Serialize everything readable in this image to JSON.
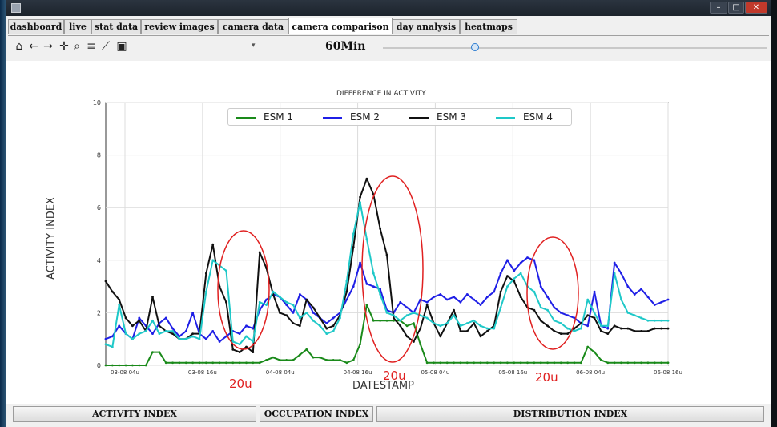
{
  "window": {
    "title": "",
    "minimize": "–",
    "maximize": "□",
    "close": "✕"
  },
  "tabs": [
    {
      "label": "dashboard"
    },
    {
      "label": "live"
    },
    {
      "label": "stat data"
    },
    {
      "label": "review images"
    },
    {
      "label": "camera data"
    },
    {
      "label": "camera comparison",
      "active": true
    },
    {
      "label": "day analysis"
    },
    {
      "label": "heatmaps"
    }
  ],
  "toolbar": {
    "icons": [
      "home-icon",
      "back-icon",
      "forward-icon",
      "pan-icon",
      "zoom-icon",
      "configure-subplots-icon",
      "edit-axis-icon",
      "save-icon"
    ],
    "interval_label": "60Min",
    "slider_value": 0.24
  },
  "annotations": [
    {
      "text": "20u"
    },
    {
      "text": "20u"
    },
    {
      "text": "20u"
    }
  ],
  "bottom_buttons": [
    {
      "label": "ACTIVITY INDEX"
    },
    {
      "label": "OCCUPATION INDEX"
    },
    {
      "label": "DISTRIBUTION INDEX"
    }
  ],
  "colors": {
    "esm1": "#1a8a1a",
    "esm2": "#1f1fe6",
    "esm3": "#111111",
    "esm4": "#1ec8c8",
    "annotation": "#e02020"
  },
  "chart_data": {
    "type": "line",
    "title": "DIFFERENCE IN ACTIVITY",
    "xlabel": "DATESTAMP",
    "ylabel": "ACTIVITY INDEX",
    "ylim": [
      0,
      10
    ],
    "yticks": [
      "0",
      "2",
      "4",
      "6",
      "8",
      "10"
    ],
    "xtick_labels": [
      "03-08 04u",
      "03-08 16u",
      "04-08 04u",
      "04-08 16u",
      "05-08 04u",
      "05-08 16u",
      "06-08 04u",
      "06-08 16u"
    ],
    "grid": true,
    "legend_position": "top-center",
    "x": [
      0,
      1,
      2,
      3,
      4,
      5,
      6,
      7,
      8,
      9,
      10,
      11,
      12,
      13,
      14,
      15,
      16,
      17,
      18,
      19,
      20,
      21,
      22,
      23,
      24,
      25,
      26,
      27,
      28,
      29,
      30,
      31,
      32,
      33,
      34,
      35,
      36,
      37,
      38,
      39,
      40,
      41,
      42,
      43,
      44,
      45,
      46,
      47,
      48,
      49,
      50,
      51,
      52,
      53,
      54,
      55,
      56,
      57,
      58,
      59,
      60,
      61,
      62,
      63,
      64,
      65,
      66,
      67,
      68,
      69,
      70,
      71,
      72,
      73,
      74,
      75,
      76,
      77,
      78,
      79,
      80,
      81,
      82,
      83,
      84
    ],
    "x_unit_note": "",
    "series": [
      {
        "name": "ESM 1",
        "values": [
          0,
          0,
          0,
          0,
          0,
          0,
          0,
          0.5,
          0.5,
          0.1,
          0.1,
          0.1,
          0.1,
          0.1,
          0.1,
          0.1,
          0.1,
          0.1,
          0.1,
          0.1,
          0.1,
          0.1,
          0.1,
          0.1,
          0.2,
          0.3,
          0.2,
          0.2,
          0.2,
          0.4,
          0.6,
          0.3,
          0.3,
          0.2,
          0.2,
          0.2,
          0.1,
          0.2,
          0.8,
          2.3,
          1.7,
          1.7,
          1.7,
          1.7,
          1.7,
          1.5,
          1.6,
          0.8,
          0.1,
          0.1,
          0.1,
          0.1,
          0.1,
          0.1,
          0.1,
          0.1,
          0.1,
          0.1,
          0.1,
          0.1,
          0.1,
          0.1,
          0.1,
          0.1,
          0.1,
          0.1,
          0.1,
          0.1,
          0.1,
          0.1,
          0.1,
          0.1,
          0.7,
          0.5,
          0.2,
          0.1,
          0.1,
          0.1,
          0.1,
          0.1,
          0.1,
          0.1,
          0.1,
          0.1,
          0.1
        ]
      },
      {
        "name": "ESM 2",
        "values": [
          1.0,
          1.1,
          1.5,
          1.2,
          1.0,
          1.8,
          1.5,
          1.2,
          1.6,
          1.8,
          1.4,
          1.1,
          1.3,
          2.0,
          1.2,
          1.0,
          1.3,
          0.9,
          1.1,
          1.3,
          1.2,
          1.5,
          1.4,
          2.1,
          2.5,
          2.7,
          2.6,
          2.3,
          2.0,
          2.7,
          2.5,
          2.0,
          1.8,
          1.6,
          1.8,
          2.0,
          2.5,
          3.0,
          3.9,
          3.1,
          3.0,
          2.9,
          2.1,
          2.0,
          2.4,
          2.2,
          2.0,
          2.5,
          2.4,
          2.6,
          2.7,
          2.5,
          2.6,
          2.4,
          2.7,
          2.5,
          2.3,
          2.6,
          2.8,
          3.5,
          4.0,
          3.6,
          3.9,
          4.1,
          4.0,
          3.0,
          2.6,
          2.2,
          2.0,
          1.9,
          1.8,
          1.6,
          1.5,
          2.8,
          1.5,
          1.4,
          3.9,
          3.5,
          3.0,
          2.7,
          2.9,
          2.6,
          2.3,
          2.4,
          2.5
        ]
      },
      {
        "name": "ESM 3",
        "values": [
          3.2,
          2.8,
          2.5,
          1.8,
          1.5,
          1.7,
          1.3,
          2.6,
          1.5,
          1.3,
          1.2,
          1.0,
          1.0,
          1.2,
          1.2,
          3.5,
          4.6,
          3.0,
          2.4,
          0.6,
          0.5,
          0.7,
          0.5,
          4.3,
          3.7,
          2.7,
          2.0,
          1.9,
          1.6,
          1.5,
          2.5,
          2.2,
          1.8,
          1.4,
          1.5,
          1.9,
          2.8,
          4.5,
          6.4,
          7.1,
          6.5,
          5.2,
          4.2,
          1.8,
          1.5,
          1.1,
          0.9,
          1.4,
          2.3,
          1.6,
          1.1,
          1.6,
          2.1,
          1.3,
          1.3,
          1.6,
          1.1,
          1.3,
          1.5,
          2.8,
          3.4,
          3.2,
          2.6,
          2.2,
          2.1,
          1.7,
          1.5,
          1.3,
          1.2,
          1.2,
          1.4,
          1.6,
          1.9,
          1.8,
          1.3,
          1.2,
          1.5,
          1.4,
          1.4,
          1.3,
          1.3,
          1.3,
          1.4,
          1.4,
          1.4
        ]
      },
      {
        "name": "ESM 4",
        "values": [
          0.8,
          0.7,
          2.3,
          1.2,
          1.0,
          1.2,
          1.3,
          1.7,
          1.2,
          1.3,
          1.3,
          1.0,
          1.0,
          1.1,
          1.0,
          2.8,
          4.0,
          3.8,
          3.6,
          0.9,
          0.8,
          1.1,
          0.9,
          2.4,
          2.3,
          2.8,
          2.6,
          2.4,
          2.3,
          1.8,
          2.0,
          1.7,
          1.5,
          1.2,
          1.3,
          1.8,
          3.2,
          5.0,
          6.2,
          4.8,
          3.5,
          2.7,
          2.0,
          1.9,
          1.7,
          1.9,
          2.0,
          1.9,
          1.8,
          1.6,
          1.5,
          1.6,
          1.9,
          1.5,
          1.6,
          1.7,
          1.5,
          1.4,
          1.4,
          2.2,
          3.0,
          3.3,
          3.5,
          3.0,
          2.8,
          2.2,
          2.1,
          1.7,
          1.6,
          1.4,
          1.3,
          1.4,
          2.5,
          2.0,
          1.5,
          1.5,
          3.5,
          2.5,
          2.0,
          1.9,
          1.8,
          1.7,
          1.7,
          1.7,
          1.7
        ]
      }
    ]
  }
}
